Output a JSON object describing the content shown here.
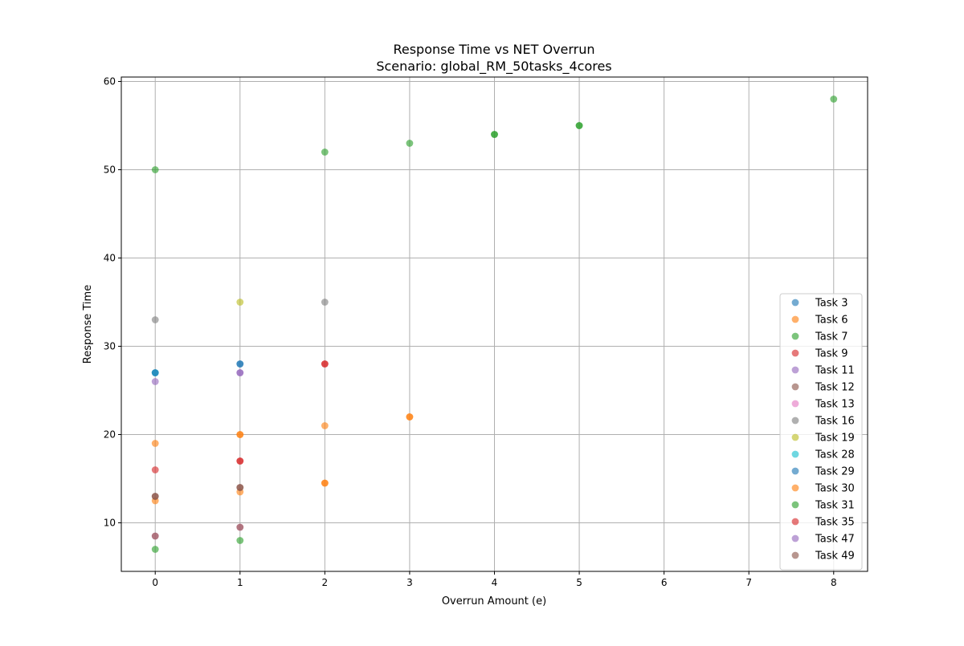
{
  "chart_data": {
    "type": "scatter",
    "title": "Response Time vs NET Overrun",
    "subtitle": "Scenario: global_RM_50tasks_4cores",
    "xlabel": "Overrun Amount (e)",
    "ylabel": "Response Time",
    "xlim": [
      -0.4,
      8.4
    ],
    "ylim": [
      4.5,
      60.5
    ],
    "x_ticks": [
      "0",
      "1",
      "2",
      "3",
      "4",
      "5",
      "6",
      "7",
      "8"
    ],
    "y_ticks": [
      "10",
      "20",
      "30",
      "40",
      "50",
      "60"
    ],
    "grid": true,
    "legend_position": "lower-right",
    "series": [
      {
        "name": "Task 3",
        "color": "#1f77b4",
        "points": [
          [
            0,
            27
          ],
          [
            1,
            28
          ]
        ]
      },
      {
        "name": "Task 6",
        "color": "#ff7f0e",
        "points": [
          [
            0,
            12.5
          ],
          [
            1,
            13.5
          ],
          [
            2,
            14.5
          ]
        ]
      },
      {
        "name": "Task 7",
        "color": "#2ca02c",
        "points": [
          [
            0,
            7
          ],
          [
            1,
            8
          ]
        ]
      },
      {
        "name": "Task 9",
        "color": "#d62728",
        "points": [
          [
            0,
            16
          ],
          [
            1,
            17
          ],
          [
            2,
            28
          ]
        ]
      },
      {
        "name": "Task 11",
        "color": "#9467bd",
        "points": [
          [
            0,
            26
          ],
          [
            1,
            27
          ]
        ]
      },
      {
        "name": "Task 12",
        "color": "#8c564b",
        "points": [
          [
            0,
            13
          ],
          [
            1,
            14
          ]
        ]
      },
      {
        "name": "Task 13",
        "color": "#e377c2",
        "points": [
          [
            0,
            8.5
          ],
          [
            1,
            9.5
          ]
        ]
      },
      {
        "name": "Task 16",
        "color": "#7f7f7f",
        "points": [
          [
            0,
            33
          ],
          [
            2,
            35
          ]
        ]
      },
      {
        "name": "Task 19",
        "color": "#bcbd22",
        "points": [
          [
            1,
            35
          ]
        ]
      },
      {
        "name": "Task 28",
        "color": "#17becf",
        "points": [
          [
            0,
            27
          ]
        ]
      },
      {
        "name": "Task 29",
        "color": "#1f77b4",
        "points": [
          [
            0,
            27
          ],
          [
            1,
            28
          ]
        ]
      },
      {
        "name": "Task 30",
        "color": "#ff7f0e",
        "points": [
          [
            0,
            19
          ],
          [
            1,
            20
          ],
          [
            2,
            21
          ],
          [
            3,
            22
          ],
          [
            1,
            20
          ],
          [
            2,
            14.5
          ],
          [
            3,
            22
          ]
        ]
      },
      {
        "name": "Task 31",
        "color": "#2ca02c",
        "points": [
          [
            0,
            50
          ],
          [
            2,
            52
          ],
          [
            3,
            53
          ],
          [
            4,
            54
          ],
          [
            5,
            55
          ],
          [
            8,
            58
          ],
          [
            4,
            54
          ],
          [
            5,
            55
          ]
        ]
      },
      {
        "name": "Task 35",
        "color": "#d62728",
        "points": [
          [
            1,
            17
          ],
          [
            2,
            28
          ]
        ]
      },
      {
        "name": "Task 47",
        "color": "#9467bd",
        "points": [
          [
            1,
            27
          ]
        ]
      },
      {
        "name": "Task 49",
        "color": "#8c564b",
        "points": [
          [
            0,
            8.5
          ],
          [
            0,
            13
          ],
          [
            1,
            9.5
          ],
          [
            1,
            14
          ]
        ]
      }
    ]
  }
}
